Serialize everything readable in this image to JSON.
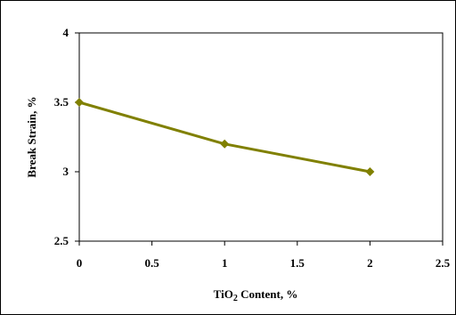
{
  "chart_data": {
    "type": "line",
    "title": "",
    "xlabel": "TiO",
    "xlabel_sub": "2",
    "xlabel_rest": " Content, %",
    "ylabel": "Break Strain, %",
    "xlim": [
      0,
      2.5
    ],
    "ylim": [
      2.5,
      4
    ],
    "xticks": [
      "0",
      "0.5",
      "1",
      "1.5",
      "2",
      "2.5"
    ],
    "yticks": [
      "2.5",
      "3",
      "3.5",
      "4"
    ],
    "grid": false,
    "legend": "none",
    "series": [
      {
        "x": [
          0,
          1,
          2
        ],
        "y": [
          3.5,
          3.2,
          3.0
        ],
        "color": "#808000"
      }
    ]
  }
}
